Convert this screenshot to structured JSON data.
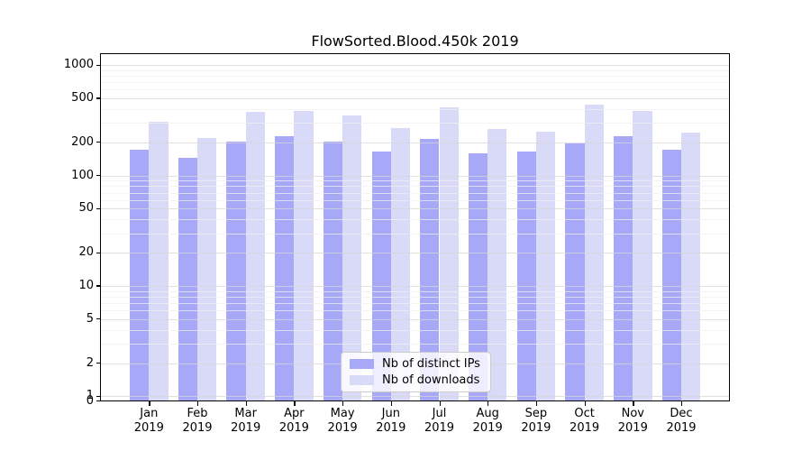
{
  "chart_data": {
    "type": "bar",
    "title": "FlowSorted.Blood.450k 2019",
    "categories": [
      "Jan",
      "Feb",
      "Mar",
      "Apr",
      "May",
      "Jun",
      "Jul",
      "Aug",
      "Sep",
      "Oct",
      "Nov",
      "Dec"
    ],
    "year": "2019",
    "series": [
      {
        "name": "Nb of distinct IPs",
        "color": "#a8a8f8",
        "values": [
          171,
          144,
          202,
          228,
          201,
          165,
          214,
          160,
          165,
          196,
          228,
          172
        ]
      },
      {
        "name": "Nb of downloads",
        "color": "#d9d9f8",
        "values": [
          306,
          217,
          375,
          382,
          351,
          268,
          414,
          264,
          250,
          438,
          386,
          244
        ]
      }
    ],
    "xlabel": "",
    "ylabel": "",
    "yscale": "log (with 0 baseline)",
    "ylim": [
      0,
      1000
    ],
    "y_major_ticks": [
      0,
      1,
      2,
      5,
      10,
      20,
      50,
      100,
      200,
      500,
      1000
    ],
    "y_minor_gridlines": [
      3,
      4,
      6,
      7,
      8,
      9,
      30,
      40,
      60,
      70,
      80,
      90,
      300,
      400,
      600,
      700,
      800,
      900
    ],
    "grid": "on",
    "legend_position": "lower center"
  }
}
